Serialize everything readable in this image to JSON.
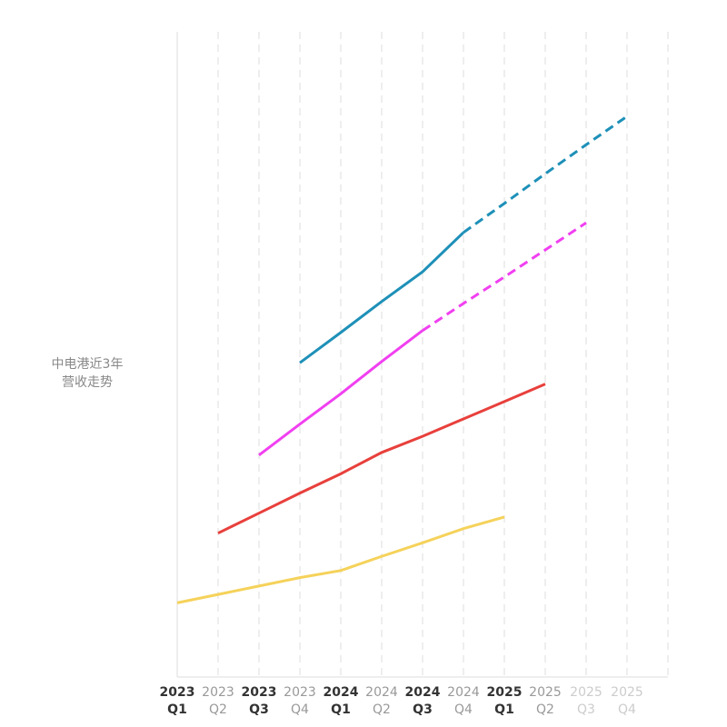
{
  "chart_data": {
    "type": "line",
    "title": [
      "中电港近3年",
      "营收走势"
    ],
    "categories": [
      [
        "2023",
        "Q1"
      ],
      [
        "2023",
        "Q2"
      ],
      [
        "2023",
        "Q3"
      ],
      [
        "2023",
        "Q4"
      ],
      [
        "2024",
        "Q1"
      ],
      [
        "2024",
        "Q2"
      ],
      [
        "2024",
        "Q3"
      ],
      [
        "2024",
        "Q4"
      ],
      [
        "2025",
        "Q1"
      ],
      [
        "2025",
        "Q2"
      ],
      [
        "2025",
        "Q3"
      ],
      [
        "2025",
        "Q4"
      ]
    ],
    "label_colors": [
      "#333",
      "#999",
      "#333",
      "#999",
      "#333",
      "#999",
      "#333",
      "#999",
      "#333",
      "#999",
      "#ccc",
      "#ccc"
    ],
    "ylim": [
      0,
      100
    ],
    "grid": true,
    "series": [
      {
        "color": "#f5d25a",
        "values": [
          11.5,
          12.8,
          14.1,
          15.4,
          16.5,
          18.7,
          20.8,
          23.0,
          24.8,
          null,
          null,
          null
        ]
      },
      {
        "color": "#e8403c",
        "values": [
          null,
          22.3,
          25.4,
          28.5,
          31.5,
          34.8,
          37.3,
          40.0,
          42.7,
          45.4,
          null,
          null
        ]
      },
      {
        "color": "#f040f0",
        "values": [
          null,
          null,
          34.4,
          39.2,
          43.9,
          48.9,
          53.7,
          57.9,
          62.0,
          66.2,
          70.4,
          null
        ],
        "dashed_from": 6
      },
      {
        "color": "#1e90b8",
        "values": [
          null,
          null,
          null,
          48.7,
          53.4,
          58.2,
          62.8,
          68.9,
          73.4,
          78.0,
          82.5,
          86.9
        ],
        "dashed_from": 7
      }
    ]
  }
}
